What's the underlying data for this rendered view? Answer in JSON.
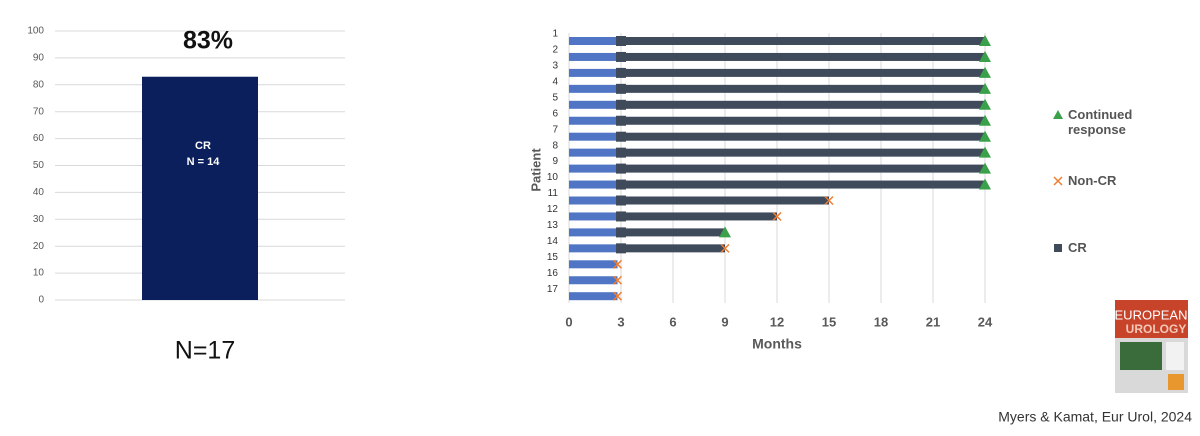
{
  "chart_data": [
    {
      "type": "bar",
      "value_labels": [
        "83%"
      ],
      "values": [
        83
      ],
      "color": "#0b1f5c",
      "bar_labels": [
        "CR",
        "N = 14"
      ],
      "footnote": "N=17",
      "ylim": [
        0,
        100
      ],
      "yticks": [
        0,
        10,
        20,
        30,
        40,
        50,
        60,
        70,
        80,
        90,
        100
      ],
      "grid": true
    },
    {
      "type": "swimmer",
      "x_label": "Months",
      "y_label": "Patient",
      "categories": [
        "1",
        "2",
        "3",
        "4",
        "5",
        "6",
        "7",
        "8",
        "9",
        "10",
        "11",
        "12",
        "13",
        "14",
        "15",
        "16",
        "17"
      ],
      "xlim": [
        0,
        24
      ],
      "xticks": [
        0,
        3,
        6,
        9,
        12,
        15,
        18,
        21,
        24
      ],
      "grid": true,
      "induction": {
        "color": "#4f75c4",
        "values": [
          2.8,
          2.8,
          2.8,
          2.8,
          2.8,
          2.8,
          2.8,
          2.8,
          2.8,
          2.8,
          2.8,
          2.8,
          2.8,
          2.8,
          2.8,
          2.8,
          2.8
        ]
      },
      "series": [
        {
          "name": "CR",
          "color": "#3f4a5a",
          "start": [
            3,
            3,
            3,
            3,
            3,
            3,
            3,
            3,
            3,
            3,
            3,
            3,
            3,
            3,
            null,
            null,
            null
          ],
          "values": [
            24,
            24,
            24,
            24,
            24,
            24,
            24,
            24,
            24,
            24,
            15,
            12,
            9,
            9,
            null,
            null,
            null
          ]
        },
        {
          "name": "Continued response",
          "color": "#3aa04a",
          "values": [
            24,
            24,
            24,
            24,
            24,
            24,
            24,
            24,
            24,
            24,
            null,
            null,
            9,
            null,
            null,
            null,
            null
          ]
        },
        {
          "name": "Non-CR",
          "color": "#ed7d31",
          "values": [
            null,
            null,
            null,
            null,
            null,
            null,
            null,
            null,
            null,
            null,
            15,
            12,
            null,
            9,
            2.8,
            2.8,
            2.8
          ]
        }
      ]
    }
  ],
  "cover": {
    "title_lines": [
      "EUROPEAN",
      "UROLOGY"
    ]
  },
  "citation": "Myers & Kamat, Eur Urol, 2024"
}
